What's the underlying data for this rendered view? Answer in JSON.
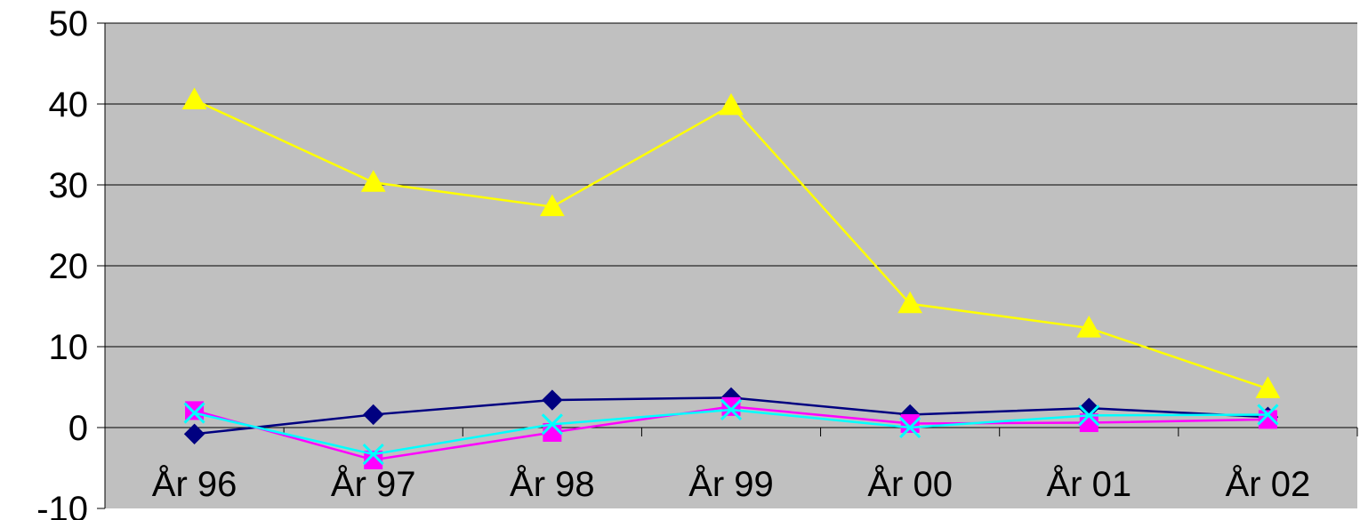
{
  "chart_data": {
    "type": "line",
    "categories": [
      "År 96",
      "År 97",
      "År 98",
      "År 99",
      "År 00",
      "År 01",
      "År 02"
    ],
    "ylim": [
      -10,
      50
    ],
    "yticks": [
      -10,
      0,
      10,
      20,
      30,
      40,
      50
    ],
    "grid": true,
    "legend": "none",
    "plot_background": "#c0c0c0",
    "series": [
      {
        "color": "#000080",
        "marker": "diamond",
        "values": [
          -0.8,
          1.6,
          3.4,
          3.7,
          1.6,
          2.4,
          1.3
        ]
      },
      {
        "color": "#ff00ff",
        "marker": "square",
        "values": [
          2.1,
          -4.0,
          -0.6,
          2.6,
          0.5,
          0.6,
          1.0
        ]
      },
      {
        "color": "#ffff00",
        "marker": "triangle",
        "values": [
          40.5,
          30.3,
          27.3,
          39.8,
          15.3,
          12.3,
          4.8
        ]
      },
      {
        "color": "#00ffff",
        "marker": "x",
        "values": [
          1.8,
          -3.3,
          0.4,
          2.2,
          0.0,
          1.5,
          1.6
        ]
      }
    ]
  }
}
